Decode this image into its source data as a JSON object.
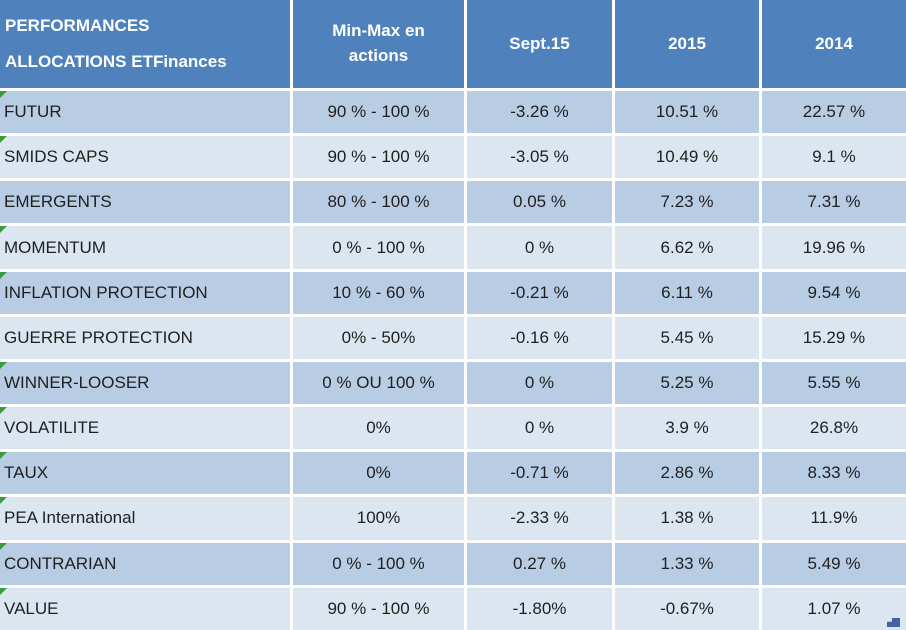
{
  "table": {
    "corner_header": {
      "line1": "PERFORMANCES",
      "line2": "ALLOCATIONS ETFinances"
    },
    "column_headers": [
      "Min-Max en actions",
      "Sept.15",
      "2015",
      "2014"
    ],
    "rows": [
      {
        "label": "FUTUR",
        "minmax": "90 % - 100 %",
        "sept15": "-3.26 %",
        "y2015": "10.51 %",
        "y2014": "22.57 %",
        "error_indicator": true
      },
      {
        "label": "SMIDS CAPS",
        "minmax": "90 % - 100 %",
        "sept15": "-3.05 %",
        "y2015": "10.49 %",
        "y2014": "9.1 %",
        "error_indicator": true
      },
      {
        "label": "EMERGENTS",
        "minmax": "80 % - 100 %",
        "sept15": "0.05 %",
        "y2015": "7.23 %",
        "y2014": "7.31 %",
        "error_indicator": false
      },
      {
        "label": "MOMENTUM",
        "minmax": "0 % - 100 %",
        "sept15": "0 %",
        "y2015": "6.62 %",
        "y2014": "19.96 %",
        "error_indicator": true
      },
      {
        "label": "INFLATION PROTECTION",
        "minmax": "10 % - 60 %",
        "sept15": "-0.21 %",
        "y2015": "6.11 %",
        "y2014": "9.54 %",
        "error_indicator": true
      },
      {
        "label": "GUERRE PROTECTION",
        "minmax": "0% - 50%",
        "sept15": "-0.16 %",
        "y2015": "5.45 %",
        "y2014": "15.29 %",
        "error_indicator": false
      },
      {
        "label": "WINNER-LOOSER",
        "minmax": "0 % OU 100 %",
        "sept15": "0 %",
        "y2015": "5.25 %",
        "y2014": "5.55 %",
        "error_indicator": true
      },
      {
        "label": "VOLATILITE",
        "minmax": "0%",
        "sept15": "0 %",
        "y2015": "3.9 %",
        "y2014": "26.8%",
        "error_indicator": true
      },
      {
        "label": "TAUX",
        "minmax": "0%",
        "sept15": "-0.71 %",
        "y2015": "2.86 %",
        "y2014": "8.33 %",
        "error_indicator": true
      },
      {
        "label": "PEA International",
        "minmax": "100%",
        "sept15": "-2.33 %",
        "y2015": "1.38 %",
        "y2014": "11.9%",
        "error_indicator": true
      },
      {
        "label": "CONTRARIAN",
        "minmax": "0 % - 100 %",
        "sept15": "0.27 %",
        "y2015": "1.33 %",
        "y2014": "5.49 %",
        "error_indicator": true
      },
      {
        "label": "VALUE",
        "minmax": "90 % - 100 %",
        "sept15": "-1.80%",
        "y2015": "-0.67%",
        "y2014": "1.07 %",
        "error_indicator": true
      }
    ]
  },
  "colors": {
    "header_bg": "#4f81bd",
    "header_text": "#ffffff",
    "row_band_dark": "#b8cce4",
    "row_band_light": "#dce6f1",
    "body_text": "#1f1f1f",
    "separator": "#ffffff",
    "error_indicator_green": "#3a9c3a",
    "fill_handle_blue": "#44619d"
  },
  "icons": {
    "error_indicator": "green corner triangle (cell warning)",
    "fill_handle": "blue selection fill-handle square"
  }
}
